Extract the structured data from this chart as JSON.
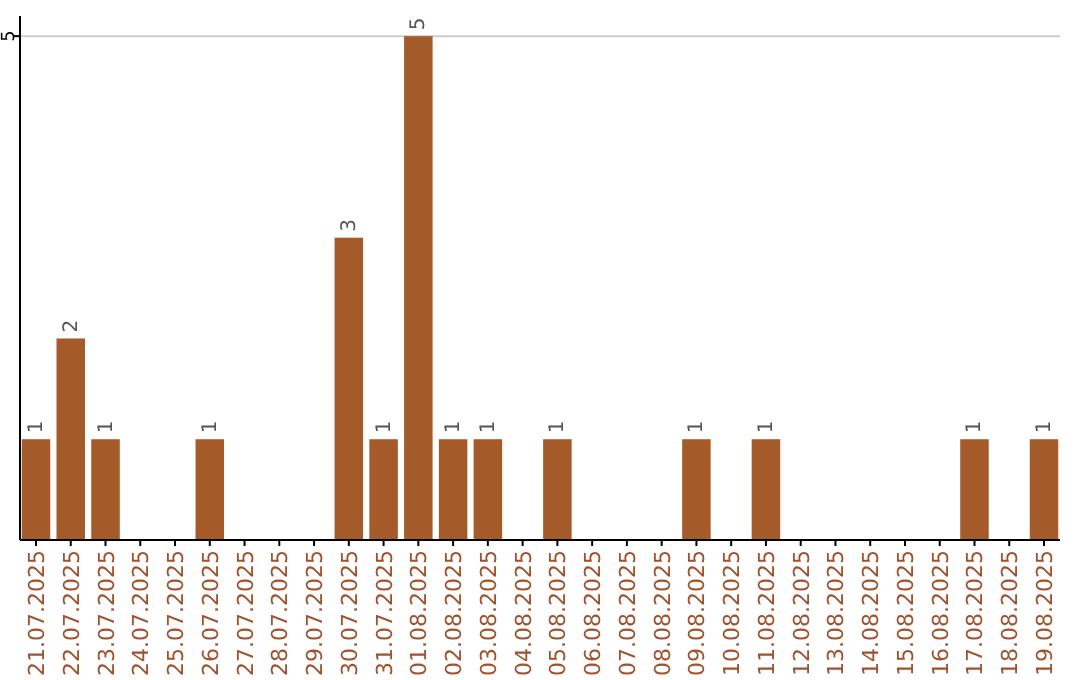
{
  "chart_data": {
    "type": "bar",
    "categories": [
      "21.07.2025",
      "22.07.2025",
      "23.07.2025",
      "24.07.2025",
      "25.07.2025",
      "26.07.2025",
      "27.07.2025",
      "28.07.2025",
      "29.07.2025",
      "30.07.2025",
      "31.07.2025",
      "01.08.2025",
      "02.08.2025",
      "03.08.2025",
      "04.08.2025",
      "05.08.2025",
      "06.08.2025",
      "07.08.2025",
      "08.08.2025",
      "09.08.2025",
      "10.08.2025",
      "11.08.2025",
      "12.08.2025",
      "13.08.2025",
      "14.08.2025",
      "15.08.2025",
      "16.08.2025",
      "17.08.2025",
      "18.08.2025",
      "19.08.2025"
    ],
    "values": [
      1,
      2,
      1,
      0,
      0,
      1,
      0,
      0,
      0,
      3,
      1,
      5,
      1,
      1,
      0,
      1,
      0,
      0,
      0,
      1,
      0,
      1,
      0,
      0,
      0,
      0,
      0,
      1,
      0,
      1
    ],
    "value_labels": [
      "1",
      "2",
      "1",
      null,
      null,
      "1",
      null,
      null,
      null,
      "3",
      "1",
      "5",
      "1",
      "1",
      null,
      "1",
      null,
      null,
      null,
      "1",
      null,
      "1",
      null,
      null,
      null,
      null,
      null,
      "1",
      null,
      "1"
    ],
    "color": "#a55a29",
    "ylim": [
      0,
      5.2
    ],
    "yticks": [
      5
    ],
    "grid": "y"
  }
}
